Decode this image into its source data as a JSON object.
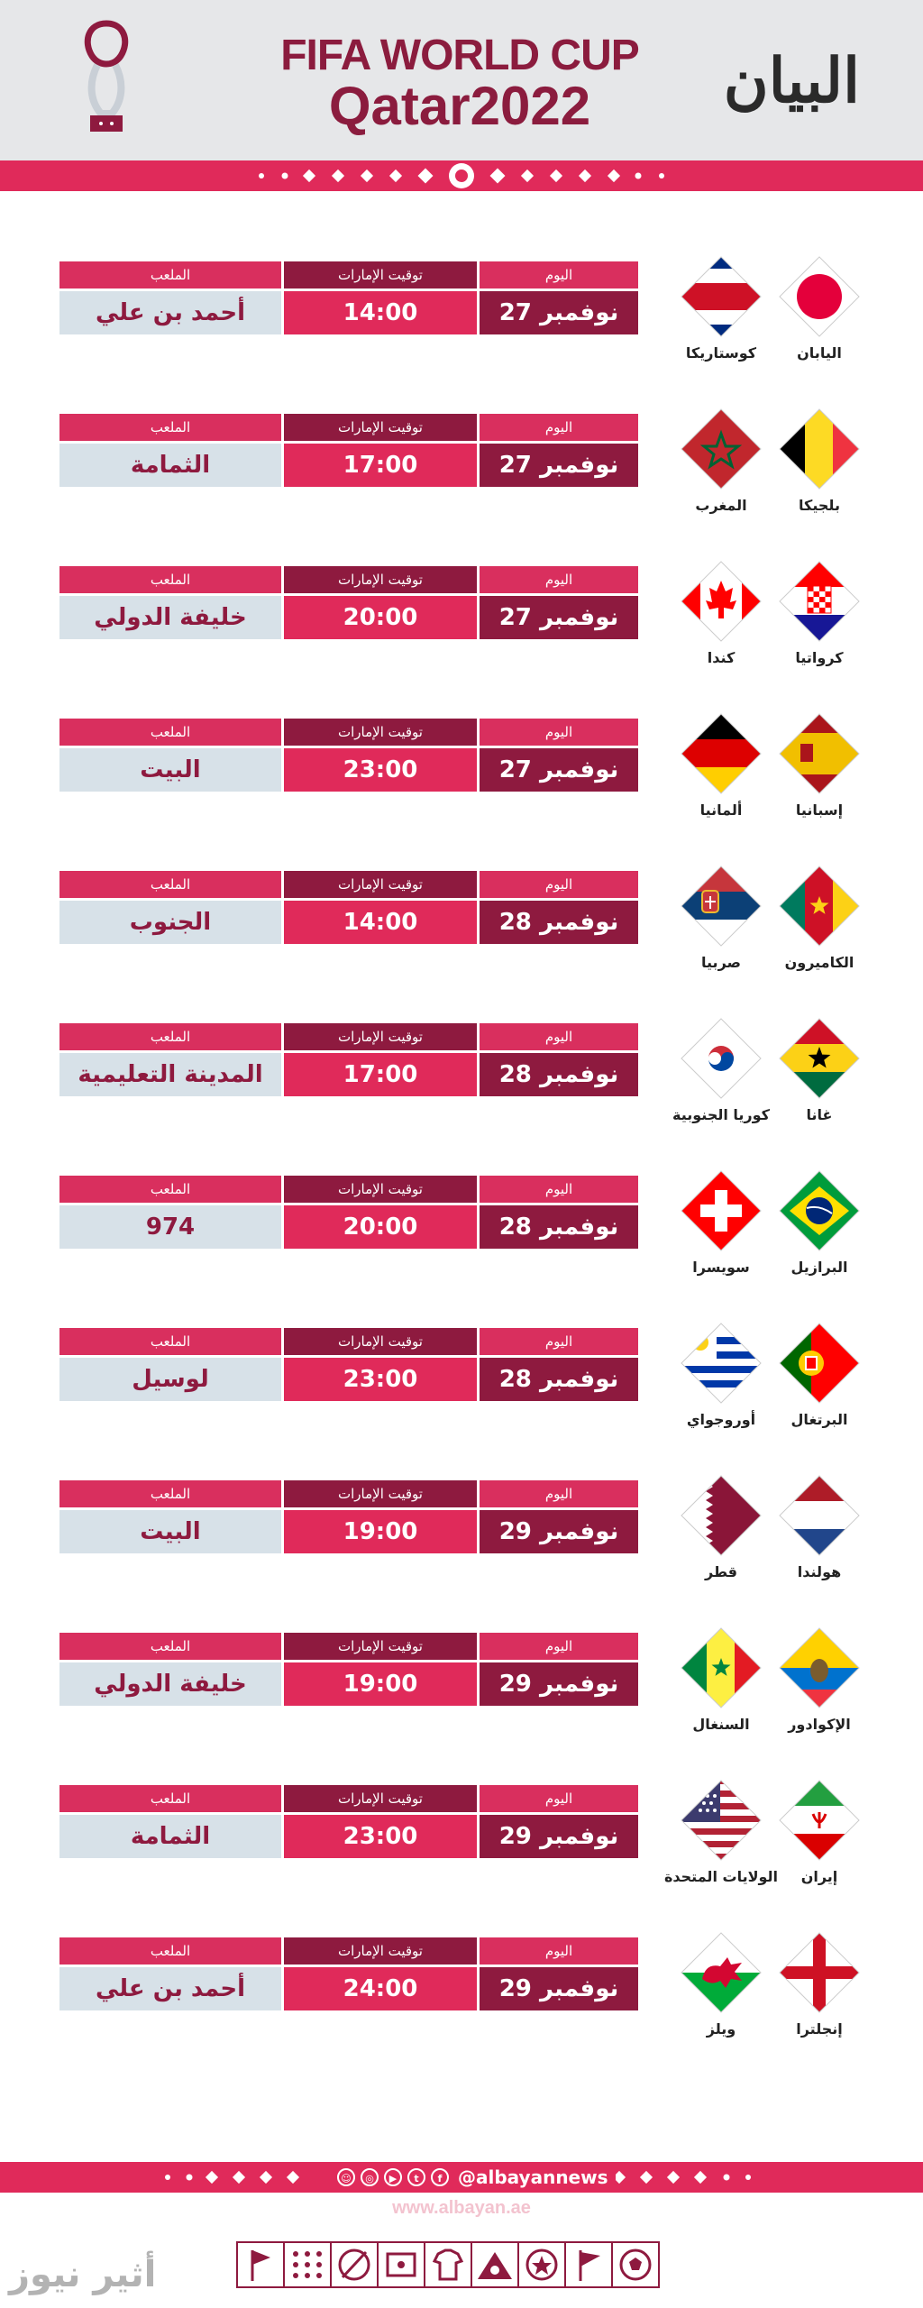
{
  "header": {
    "brand": "البيان",
    "title_line1": "FIFA WORLD CUP",
    "title_line2": "Qatar2022"
  },
  "labels": {
    "day": "اليوم",
    "time": "توقيت الإمارات",
    "stadium": "الملعب"
  },
  "matches": [
    {
      "team1": "اليابان",
      "team2": "كوستاريكا",
      "flag1": "japan-flag-icon",
      "flag2": "costa-rica-flag-icon",
      "day": "27 نوفمبر",
      "time": "14:00",
      "stadium": "أحمد بن علي"
    },
    {
      "team1": "بلجيكا",
      "team2": "المغرب",
      "flag1": "belgium-flag-icon",
      "flag2": "morocco-flag-icon",
      "day": "27 نوفمبر",
      "time": "17:00",
      "stadium": "الثمامة"
    },
    {
      "team1": "كرواتيا",
      "team2": "كندا",
      "flag1": "croatia-flag-icon",
      "flag2": "canada-flag-icon",
      "day": "27 نوفمبر",
      "time": "20:00",
      "stadium": "خليفة الدولي"
    },
    {
      "team1": "إسبانيا",
      "team2": "ألمانيا",
      "flag1": "spain-flag-icon",
      "flag2": "germany-flag-icon",
      "day": "27 نوفمبر",
      "time": "23:00",
      "stadium": "البيت"
    },
    {
      "team1": "الكاميرون",
      "team2": "صربيا",
      "flag1": "cameroon-flag-icon",
      "flag2": "serbia-flag-icon",
      "day": "28 نوفمبر",
      "time": "14:00",
      "stadium": "الجنوب"
    },
    {
      "team1": "غانا",
      "team2": "كوريا الجنوبية",
      "flag1": "ghana-flag-icon",
      "flag2": "south-korea-flag-icon",
      "day": "28 نوفمبر",
      "time": "17:00",
      "stadium": "المدينة التعليمية"
    },
    {
      "team1": "البرازيل",
      "team2": "سويسرا",
      "flag1": "brazil-flag-icon",
      "flag2": "switzerland-flag-icon",
      "day": "28 نوفمبر",
      "time": "20:00",
      "stadium": "974"
    },
    {
      "team1": "البرتغال",
      "team2": "أوروجواي",
      "flag1": "portugal-flag-icon",
      "flag2": "uruguay-flag-icon",
      "day": "28 نوفمبر",
      "time": "23:00",
      "stadium": "لوسيل"
    },
    {
      "team1": "هولندا",
      "team2": "قطر",
      "flag1": "netherlands-flag-icon",
      "flag2": "qatar-flag-icon",
      "day": "29 نوفمبر",
      "time": "19:00",
      "stadium": "البيت"
    },
    {
      "team1": "الإكوادور",
      "team2": "السنغال",
      "flag1": "ecuador-flag-icon",
      "flag2": "senegal-flag-icon",
      "day": "29 نوفمبر",
      "time": "19:00",
      "stadium": "خليفة الدولي"
    },
    {
      "team1": "إيران",
      "team2": "الولايات المتحدة",
      "flag1": "iran-flag-icon",
      "flag2": "usa-flag-icon",
      "day": "29 نوفمبر",
      "time": "23:00",
      "stadium": "الثمامة"
    },
    {
      "team1": "إنجلترا",
      "team2": "ويلز",
      "flag1": "england-flag-icon",
      "flag2": "wales-flag-icon",
      "day": "29 نوفمبر",
      "time": "24:00",
      "stadium": "أحمد بن علي"
    }
  ],
  "footer": {
    "handle": "@albayannews",
    "url": "www.albayan.ae",
    "watermark": "أثير نيوز",
    "social_icons": [
      "snapchat-icon",
      "instagram-icon",
      "youtube-icon",
      "twitter-icon",
      "facebook-icon"
    ]
  },
  "colors": {
    "accent": "#e02a5a",
    "maroon": "#8e1a3f",
    "light": "#d7e1e8"
  }
}
